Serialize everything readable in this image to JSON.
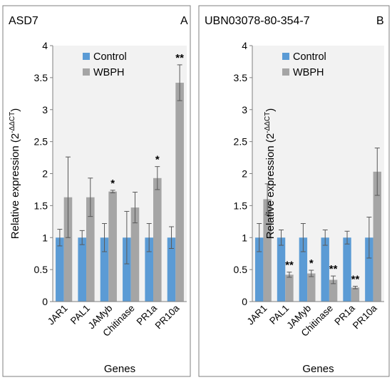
{
  "ylabel_main": "Relative expression (2",
  "ylabel_sup": "-ΔΔCT",
  "ylabel_close": ")",
  "xlabel": "Genes",
  "legend": {
    "control": "Control",
    "treatment": "WBPH"
  },
  "colors": {
    "control": "#5b9bd5",
    "treatment": "#a5a5a5",
    "panel_bg": "#f2f2f2",
    "error_bar": "#595959",
    "frame": "#7f7f7f"
  },
  "chart_data": [
    {
      "type": "bar",
      "title": "ASD7",
      "panel_letter": "A",
      "categories": [
        "JAR1",
        "PAL1",
        "JAMyb",
        "Chitinase",
        "PR1a",
        "PR10a"
      ],
      "ylim": [
        0,
        4
      ],
      "yticks": [
        "0",
        "0.5",
        "1",
        "1.5",
        "2",
        "2.5",
        "3",
        "3.5",
        "4"
      ],
      "ytick_values": [
        0,
        0.5,
        1,
        1.5,
        2,
        2.5,
        3,
        3.5,
        4
      ],
      "legend_position": "top-left",
      "grid": false,
      "series": [
        {
          "name": "Control",
          "values": [
            1,
            1,
            1,
            1,
            1,
            1
          ],
          "errors": [
            0.13,
            0.11,
            0.22,
            0.41,
            0.22,
            0.17
          ],
          "significance": [
            "",
            "",
            "",
            "",
            "",
            ""
          ]
        },
        {
          "name": "WBPH",
          "values": [
            1.63,
            1.63,
            1.72,
            1.47,
            1.93,
            3.42
          ],
          "errors": [
            0.63,
            0.3,
            0.02,
            0.24,
            0.18,
            0.28
          ],
          "significance": [
            "",
            "",
            "*",
            "",
            "*",
            "**"
          ]
        }
      ]
    },
    {
      "type": "bar",
      "title": "UBN03078-80-354-7",
      "panel_letter": "B",
      "categories": [
        "JAR1",
        "PAL1",
        "JAMyb",
        "Chitinase",
        "PR1a",
        "PR10a"
      ],
      "ylim": [
        0,
        4
      ],
      "yticks": [
        "0",
        "0.5",
        "1",
        "1.5",
        "2",
        "2.5",
        "3",
        "3.5",
        "4"
      ],
      "ytick_values": [
        0,
        0.5,
        1,
        1.5,
        2,
        2.5,
        3,
        3.5,
        4
      ],
      "legend_position": "top-left",
      "grid": false,
      "series": [
        {
          "name": "Control",
          "values": [
            1,
            1,
            1,
            1,
            1,
            1
          ],
          "errors": [
            0.22,
            0.12,
            0.22,
            0.12,
            0.1,
            0.32
          ],
          "significance": [
            "",
            "",
            "",
            "",
            "",
            ""
          ]
        },
        {
          "name": "WBPH",
          "values": [
            1.6,
            0.42,
            0.44,
            0.34,
            0.22,
            2.03
          ],
          "errors": [
            0.24,
            0.04,
            0.05,
            0.06,
            0.02,
            0.37
          ],
          "significance": [
            "",
            "**",
            "*",
            "**",
            "**",
            ""
          ]
        }
      ]
    }
  ]
}
